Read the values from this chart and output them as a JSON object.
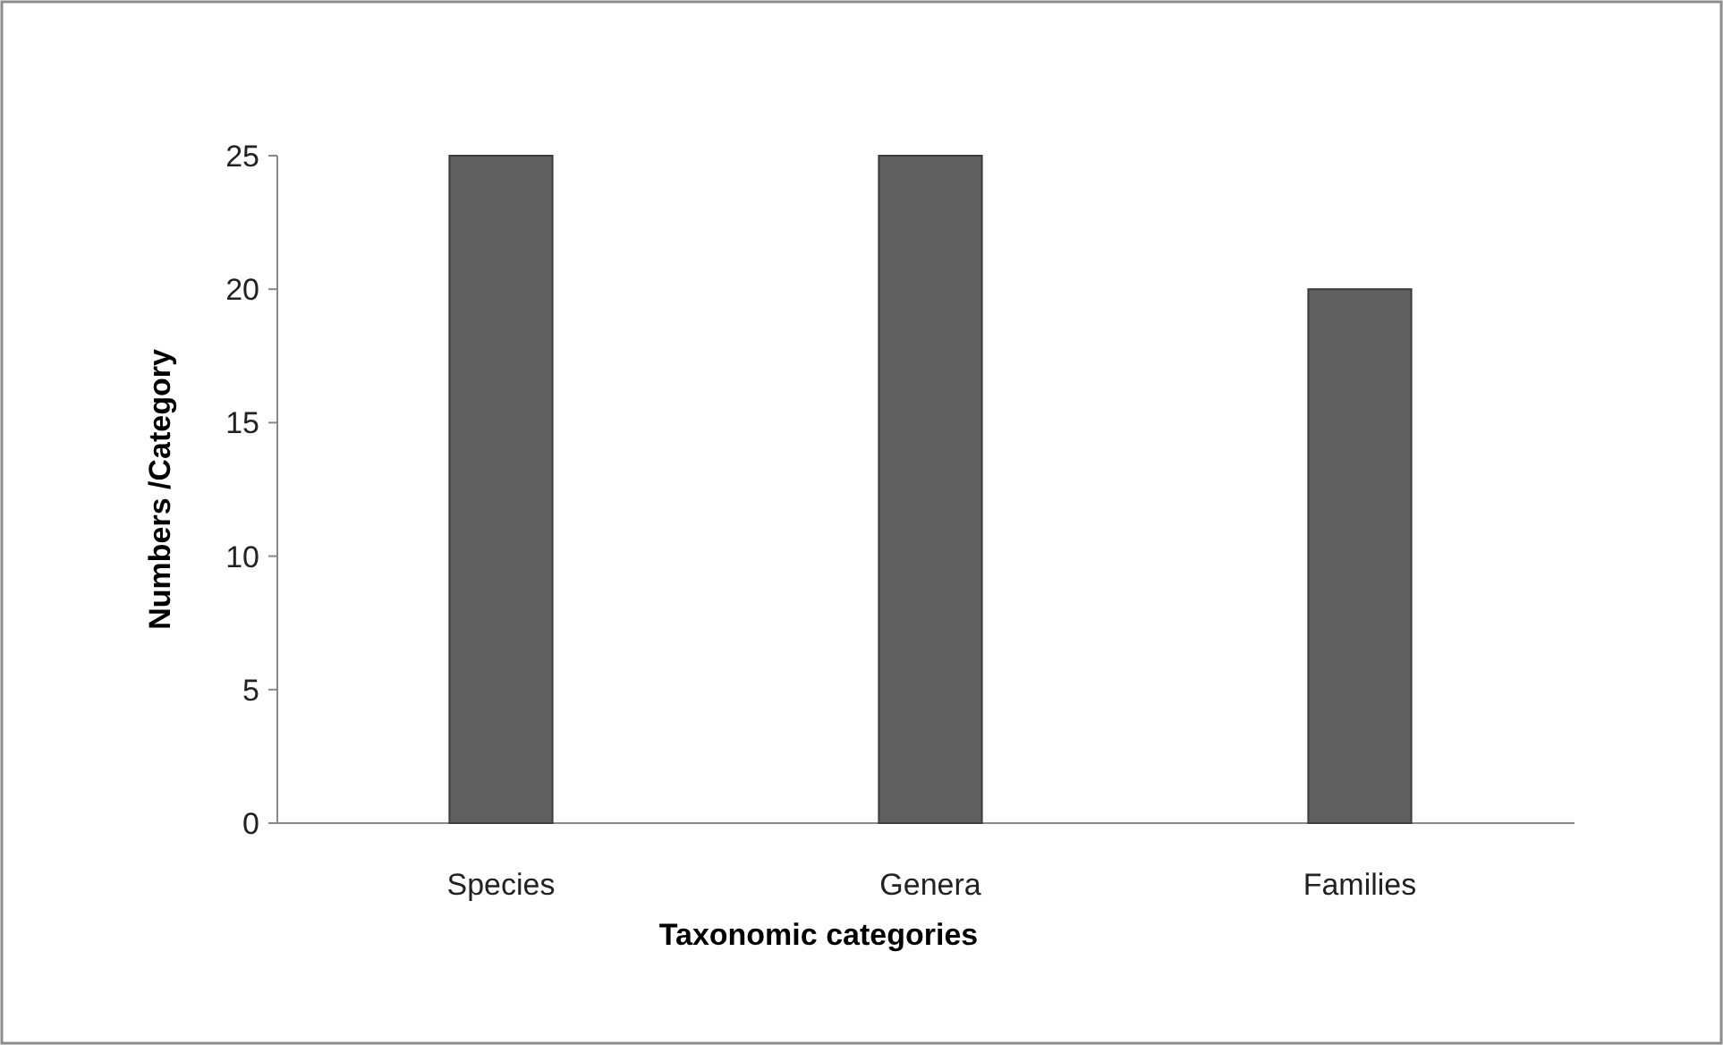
{
  "chart_data": {
    "type": "bar",
    "xlabel": "Taxonomic categories",
    "ylabel": "Numbers /Category",
    "categories": [
      "Species",
      "Genera",
      "Families"
    ],
    "values": [
      25,
      25,
      20
    ],
    "color": "#606060",
    "ylim": [
      0,
      25
    ],
    "yticks": [
      0,
      5,
      10,
      15,
      20,
      25
    ]
  }
}
